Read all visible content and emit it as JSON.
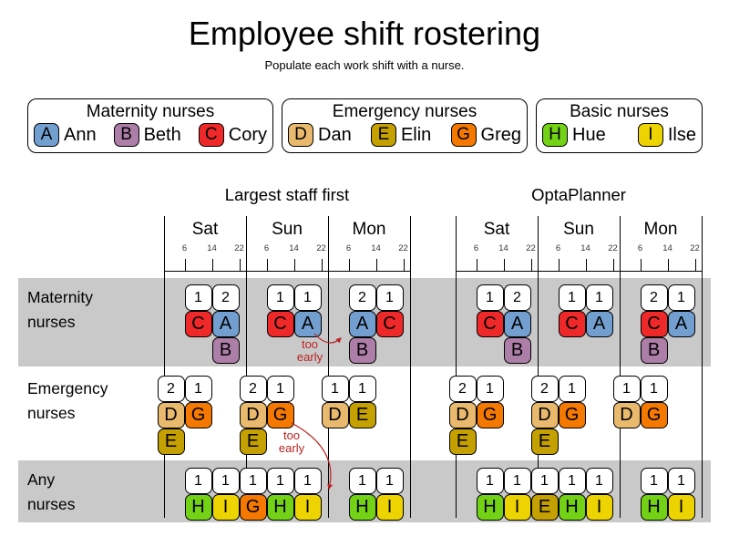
{
  "page": {
    "title": "Employee shift rostering",
    "subtitle": "Populate each work shift with a nurse."
  },
  "band_color": "#c9c9c9",
  "annotation_color": "#bb2222",
  "legend": [
    {
      "title": "Maternity nurses",
      "entries": [
        {
          "code": "A",
          "name": "Ann",
          "color": "#729fcf"
        },
        {
          "code": "B",
          "name": "Beth",
          "color": "#ad7fa8"
        },
        {
          "code": "C",
          "name": "Cory",
          "color": "#ef2929"
        }
      ]
    },
    {
      "title": "Emergency nurses",
      "entries": [
        {
          "code": "D",
          "name": "Dan",
          "color": "#e9b96e"
        },
        {
          "code": "E",
          "name": "Elin",
          "color": "#c4a000"
        },
        {
          "code": "G",
          "name": "Greg",
          "color": "#f57900"
        }
      ]
    },
    {
      "title": "Basic nurses",
      "entries": [
        {
          "code": "H",
          "name": "Hue",
          "color": "#73d216"
        },
        {
          "code": "I",
          "name": "Ilse",
          "color": "#edd400"
        }
      ]
    }
  ],
  "chart_data": {
    "type": "table",
    "description": "Side-by-side comparison of two nurse rosters over three days; each shift block shows the number of nurses required on top and the assigned nurses below",
    "days": [
      "Sat",
      "Sun",
      "Mon"
    ],
    "hour_ticks": [
      6,
      14,
      22
    ],
    "charts": [
      {
        "title": "Largest staff first",
        "rows": [
          {
            "label": "Maternity nurses",
            "shifts": [
              {
                "day": "Sat",
                "shift": "morning",
                "required": 1,
                "nurses": [
                  "C"
                ]
              },
              {
                "day": "Sat",
                "shift": "afternoon",
                "required": 2,
                "nurses": [
                  "A",
                  "B"
                ]
              },
              {
                "day": "Sun",
                "shift": "morning",
                "required": 1,
                "nurses": [
                  "C"
                ]
              },
              {
                "day": "Sun",
                "shift": "afternoon",
                "required": 1,
                "nurses": [
                  "A"
                ]
              },
              {
                "day": "Mon",
                "shift": "morning",
                "required": 2,
                "nurses": [
                  "A",
                  "B"
                ]
              },
              {
                "day": "Mon",
                "shift": "afternoon",
                "required": 1,
                "nurses": [
                  "C"
                ]
              }
            ]
          },
          {
            "label": "Emergency nurses",
            "shifts": [
              {
                "day": "Sat",
                "shift": "night",
                "required": 2,
                "nurses": [
                  "D",
                  "E"
                ]
              },
              {
                "day": "Sat",
                "shift": "morning",
                "required": 1,
                "nurses": [
                  "G"
                ]
              },
              {
                "day": "Sun",
                "shift": "night",
                "required": 2,
                "nurses": [
                  "D",
                  "E"
                ]
              },
              {
                "day": "Sun",
                "shift": "morning",
                "required": 1,
                "nurses": [
                  "G"
                ]
              },
              {
                "day": "Mon",
                "shift": "night",
                "required": 1,
                "nurses": [
                  "D"
                ]
              },
              {
                "day": "Mon",
                "shift": "morning",
                "required": 1,
                "nurses": [
                  "E"
                ]
              }
            ]
          },
          {
            "label": "Any nurses",
            "shifts": [
              {
                "day": "Sat",
                "shift": "morning",
                "required": 1,
                "nurses": [
                  "H"
                ]
              },
              {
                "day": "Sat",
                "shift": "afternoon",
                "required": 1,
                "nurses": [
                  "I"
                ]
              },
              {
                "day": "Sun",
                "shift": "morning",
                "required": 1,
                "nurses": [
                  "H"
                ]
              },
              {
                "day": "Sun",
                "shift": "afternoon",
                "required": 1,
                "nurses": [
                  "I"
                ]
              },
              {
                "day": "Sun",
                "shift": "night",
                "required": 1,
                "nurses": [
                  "G"
                ]
              },
              {
                "day": "Mon",
                "shift": "morning",
                "required": 1,
                "nurses": [
                  "H"
                ]
              },
              {
                "day": "Mon",
                "shift": "afternoon",
                "required": 1,
                "nurses": [
                  "I"
                ]
              }
            ]
          }
        ],
        "annotations": [
          {
            "text": "too early",
            "from": "A Sun afternoon shift",
            "to": "A/B Mon morning shift"
          },
          {
            "text": "too early",
            "from": "G Sun morning shift",
            "to": "G Sun night shift"
          }
        ]
      },
      {
        "title": "OptaPlanner",
        "rows": [
          {
            "label": "Maternity nurses",
            "shifts": [
              {
                "day": "Sat",
                "shift": "morning",
                "required": 1,
                "nurses": [
                  "C"
                ]
              },
              {
                "day": "Sat",
                "shift": "afternoon",
                "required": 2,
                "nurses": [
                  "A",
                  "B"
                ]
              },
              {
                "day": "Sun",
                "shift": "morning",
                "required": 1,
                "nurses": [
                  "C"
                ]
              },
              {
                "day": "Sun",
                "shift": "afternoon",
                "required": 1,
                "nurses": [
                  "A"
                ]
              },
              {
                "day": "Mon",
                "shift": "morning",
                "required": 2,
                "nurses": [
                  "C",
                  "B"
                ]
              },
              {
                "day": "Mon",
                "shift": "afternoon",
                "required": 1,
                "nurses": [
                  "A"
                ]
              }
            ]
          },
          {
            "label": "Emergency nurses",
            "shifts": [
              {
                "day": "Sat",
                "shift": "night",
                "required": 2,
                "nurses": [
                  "D",
                  "E"
                ]
              },
              {
                "day": "Sat",
                "shift": "morning",
                "required": 1,
                "nurses": [
                  "G"
                ]
              },
              {
                "day": "Sun",
                "shift": "night",
                "required": 2,
                "nurses": [
                  "D",
                  "E"
                ]
              },
              {
                "day": "Sun",
                "shift": "morning",
                "required": 1,
                "nurses": [
                  "G"
                ]
              },
              {
                "day": "Mon",
                "shift": "night",
                "required": 1,
                "nurses": [
                  "D"
                ]
              },
              {
                "day": "Mon",
                "shift": "morning",
                "required": 1,
                "nurses": [
                  "G"
                ]
              }
            ]
          },
          {
            "label": "Any nurses",
            "shifts": [
              {
                "day": "Sat",
                "shift": "morning",
                "required": 1,
                "nurses": [
                  "H"
                ]
              },
              {
                "day": "Sat",
                "shift": "afternoon",
                "required": 1,
                "nurses": [
                  "I"
                ]
              },
              {
                "day": "Sun",
                "shift": "morning",
                "required": 1,
                "nurses": [
                  "H"
                ]
              },
              {
                "day": "Sun",
                "shift": "afternoon",
                "required": 1,
                "nurses": [
                  "I"
                ]
              },
              {
                "day": "Sun",
                "shift": "night",
                "required": 1,
                "nurses": [
                  "E"
                ]
              },
              {
                "day": "Mon",
                "shift": "morning",
                "required": 1,
                "nurses": [
                  "H"
                ]
              },
              {
                "day": "Mon",
                "shift": "afternoon",
                "required": 1,
                "nurses": [
                  "I"
                ]
              }
            ]
          }
        ],
        "annotations": []
      }
    ]
  }
}
